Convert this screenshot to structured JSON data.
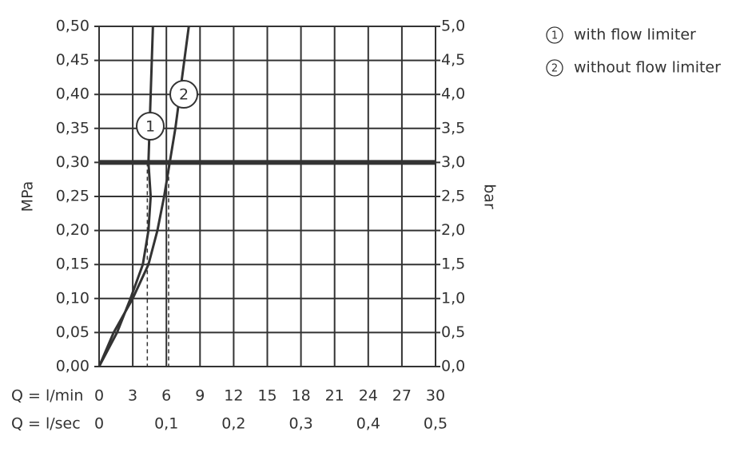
{
  "chart_data": {
    "type": "line",
    "y_label": "MPa",
    "y2_label": "bar",
    "x_label": "Q = l/min",
    "x2_label": "Q = l/sec",
    "xlim": [
      0,
      30
    ],
    "xticks": [
      0,
      3,
      6,
      9,
      12,
      15,
      18,
      21,
      24,
      27,
      30
    ],
    "x2lim": [
      0,
      0.5
    ],
    "x2ticks": [
      {
        "value": 0,
        "label": "0"
      },
      {
        "value": 0.1,
        "label": "0,1"
      },
      {
        "value": 0.2,
        "label": "0,2"
      },
      {
        "value": 0.3,
        "label": "0,3"
      },
      {
        "value": 0.4,
        "label": "0,4"
      },
      {
        "value": 0.5,
        "label": "0,5"
      }
    ],
    "ylim": [
      0,
      0.5
    ],
    "yticks": [
      {
        "value": 0,
        "label": "0,00"
      },
      {
        "value": 0.05,
        "label": "0,05"
      },
      {
        "value": 0.1,
        "label": "0,10"
      },
      {
        "value": 0.15,
        "label": "0,15"
      },
      {
        "value": 0.2,
        "label": "0,20"
      },
      {
        "value": 0.25,
        "label": "0,25"
      },
      {
        "value": 0.3,
        "label": "0,30"
      },
      {
        "value": 0.35,
        "label": "0,35"
      },
      {
        "value": 0.4,
        "label": "0,40"
      },
      {
        "value": 0.45,
        "label": "0,45"
      },
      {
        "value": 0.5,
        "label": "0,50"
      }
    ],
    "y2lim": [
      0,
      5
    ],
    "y2ticks": [
      {
        "value": 0,
        "label": "0,0"
      },
      {
        "value": 0.5,
        "label": "0,5"
      },
      {
        "value": 1,
        "label": "1,0"
      },
      {
        "value": 1.5,
        "label": "1,5"
      },
      {
        "value": 2,
        "label": "2,0"
      },
      {
        "value": 2.5,
        "label": "2,5"
      },
      {
        "value": 3,
        "label": "3,0"
      },
      {
        "value": 3.5,
        "label": "3,5"
      },
      {
        "value": 4,
        "label": "4,0"
      },
      {
        "value": 4.5,
        "label": "4,5"
      },
      {
        "value": 5,
        "label": "5,0"
      }
    ],
    "grid": true,
    "reference_line": 0.3,
    "flow_markers": [
      4.3,
      6.2
    ],
    "series": [
      {
        "label": "1",
        "name": "with flow limiter",
        "color": "#333333",
        "x": [
          0,
          1.6,
          2.8,
          3.9,
          4.4,
          4.6,
          4.4,
          4.5,
          4.6,
          4.7,
          4.8
        ],
        "values": [
          0,
          0.05,
          0.1,
          0.15,
          0.2,
          0.25,
          0.3,
          0.35,
          0.4,
          0.45,
          0.5
        ]
      },
      {
        "label": "2",
        "name": "without flow limiter",
        "color": "#333333",
        "x": [
          0,
          1.3,
          3.0,
          4.4,
          5.2,
          5.8,
          6.3,
          6.8,
          7.2,
          7.6,
          8.0
        ],
        "values": [
          0,
          0.05,
          0.1,
          0.15,
          0.2,
          0.25,
          0.3,
          0.35,
          0.4,
          0.45,
          0.5
        ]
      }
    ]
  }
}
